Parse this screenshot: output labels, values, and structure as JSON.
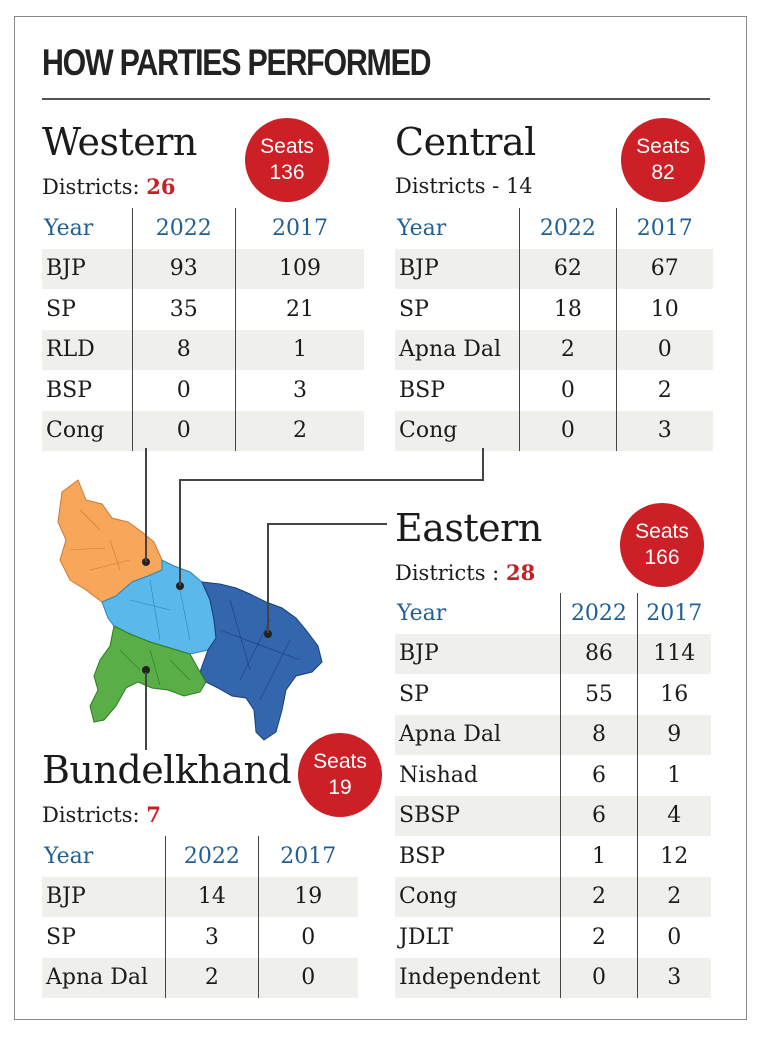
{
  "headline": "HOW PARTIES PERFORMED",
  "seats_label": "Seats",
  "districts_label_colon": "Districts:",
  "year_header": "Year",
  "col_2022": "2022",
  "col_2017": "2017",
  "western": {
    "name": "Western",
    "districts_label": "Districts:",
    "districts": "26",
    "seats": "136",
    "rows": [
      {
        "party": "BJP",
        "y2022": "93",
        "y2017": "109"
      },
      {
        "party": "SP",
        "y2022": "35",
        "y2017": "21"
      },
      {
        "party": "RLD",
        "y2022": "8",
        "y2017": "1"
      },
      {
        "party": "BSP",
        "y2022": "0",
        "y2017": "3"
      },
      {
        "party": "Cong",
        "y2022": "0",
        "y2017": "2"
      }
    ]
  },
  "central": {
    "name": "Central",
    "districts_text": "Districts - 14",
    "seats": "82",
    "rows": [
      {
        "party": "BJP",
        "y2022": "62",
        "y2017": "67"
      },
      {
        "party": "SP",
        "y2022": "18",
        "y2017": "10"
      },
      {
        "party": "Apna Dal",
        "y2022": "2",
        "y2017": "0"
      },
      {
        "party": "BSP",
        "y2022": "0",
        "y2017": "2"
      },
      {
        "party": "Cong",
        "y2022": "0",
        "y2017": "3"
      }
    ]
  },
  "eastern": {
    "name": "Eastern",
    "districts_label": "Districts :",
    "districts": "28",
    "seats": "166",
    "rows": [
      {
        "party": "BJP",
        "y2022": "86",
        "y2017": "114"
      },
      {
        "party": "SP",
        "y2022": "55",
        "y2017": "16"
      },
      {
        "party": "Apna Dal",
        "y2022": "8",
        "y2017": "9"
      },
      {
        "party": "Nishad",
        "y2022": "6",
        "y2017": "1"
      },
      {
        "party": "SBSP",
        "y2022": "6",
        "y2017": "4"
      },
      {
        "party": "BSP",
        "y2022": "1",
        "y2017": "12"
      },
      {
        "party": "Cong",
        "y2022": "2",
        "y2017": "2"
      },
      {
        "party": "JDLT",
        "y2022": "2",
        "y2017": "0"
      },
      {
        "party": "Independent",
        "y2022": "0",
        "y2017": "3"
      }
    ]
  },
  "bundelkhand": {
    "name": "Bundelkhand",
    "districts_label": "Districts:",
    "districts": "7",
    "seats": "19",
    "rows": [
      {
        "party": "BJP",
        "y2022": "14",
        "y2017": "19"
      },
      {
        "party": "SP",
        "y2022": "3",
        "y2017": "0"
      },
      {
        "party": "Apna Dal",
        "y2022": "2",
        "y2017": "0"
      }
    ]
  },
  "colors": {
    "western": "#f7a65a",
    "central": "#5bb8ea",
    "eastern": "#3466ae",
    "bundelkhand": "#5aae47",
    "accent": "#cc1f26",
    "header_blue": "#1f5f94"
  }
}
